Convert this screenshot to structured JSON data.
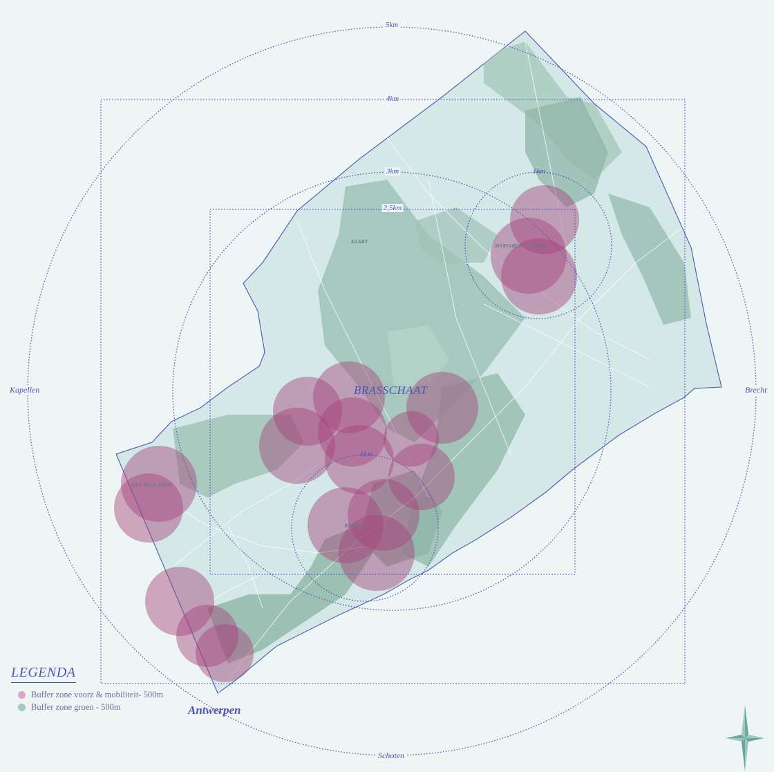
{
  "rings": [
    {
      "id": "5km",
      "label": "5km"
    },
    {
      "id": "4km",
      "label": "4km"
    },
    {
      "id": "3km",
      "label": "3km"
    },
    {
      "id": "2_5km",
      "label": "2,5km"
    },
    {
      "id": "1km_nw",
      "label": "1km"
    },
    {
      "id": "1km_s",
      "label": "1km"
    }
  ],
  "directions": {
    "west": "Kapellen",
    "east": "Brecht",
    "south": "Schoten",
    "southwest": "Antwerpen"
  },
  "towns": {
    "main": "BRASSCHAAT",
    "north": "KAART",
    "northeast": "MARIABURG SCHOOL",
    "south": "BURGHT",
    "west": "HET PAVILJOEN"
  },
  "legend": {
    "title": "LEGENDA",
    "items": [
      {
        "label": "Buffer zone voorz & mobiliteit- 500m",
        "color": "#d7a9c6"
      },
      {
        "label": "Buffer zone groen - 500m",
        "color": "#a9c8bd"
      }
    ]
  },
  "colors": {
    "background": "#eef6f5",
    "municipality_fill": "#d4e8e7",
    "green_zone": "#8fb5a7",
    "buffer_facilities": "#a4427a",
    "rings": "#4f53b8"
  }
}
